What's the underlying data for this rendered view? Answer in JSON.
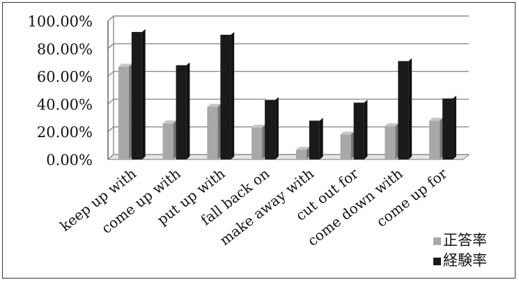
{
  "chart_data": {
    "type": "bar",
    "categories": [
      "keep up with",
      "come up with",
      "put up with",
      "fall back on",
      "make away with",
      "cut out for",
      "come down with",
      "come up for"
    ],
    "series": [
      {
        "name": "正答率",
        "values": [
          67,
          26,
          38,
          23,
          7,
          18,
          24,
          28
        ],
        "color": "#a8a8a8"
      },
      {
        "name": "経験率",
        "values": [
          92,
          68,
          90,
          43,
          28,
          41,
          71,
          44
        ],
        "color": "#1a1a1a"
      }
    ],
    "y_ticks": [
      "0.00%",
      "20.00%",
      "40.00%",
      "60.00%",
      "80.00%",
      "100.00%"
    ],
    "ylim": [
      0,
      100
    ],
    "grid": true,
    "style": "3d-column",
    "legend_position": "bottom-right"
  }
}
